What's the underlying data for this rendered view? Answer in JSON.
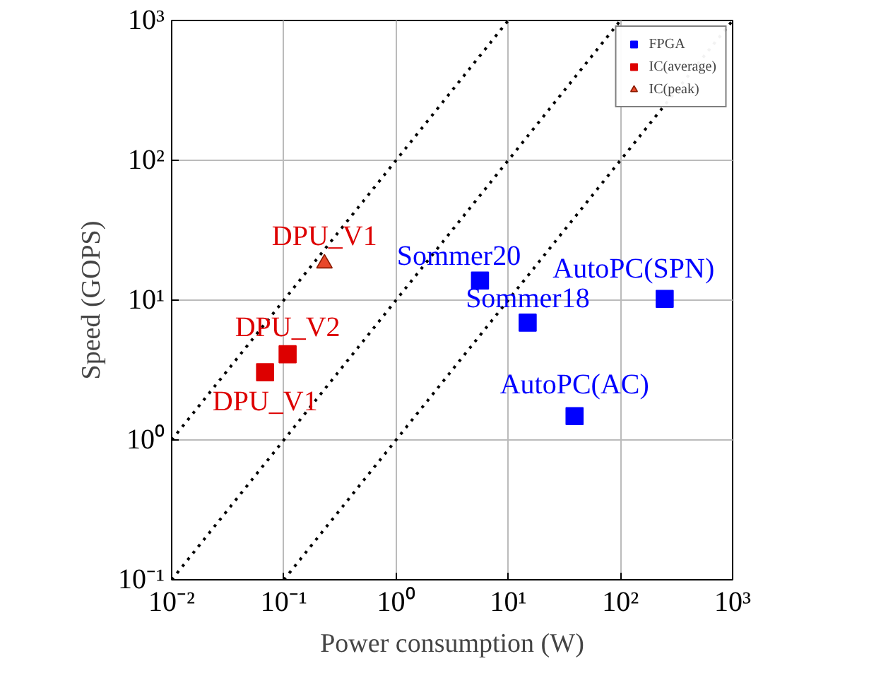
{
  "chart_data": {
    "type": "scatter",
    "xlabel": "Power consumption (W)",
    "ylabel": "Speed (GOPS)",
    "log": "xy",
    "grid": true,
    "legend": "top right",
    "xlim": [
      0.01,
      1000
    ],
    "ylim": [
      0.1,
      1000
    ],
    "xticks": [
      {
        "value": 0.01,
        "label": "10⁻²"
      },
      {
        "value": 0.1,
        "label": "10⁻¹"
      },
      {
        "value": 1,
        "label": "10⁰"
      },
      {
        "value": 10,
        "label": "10¹"
      },
      {
        "value": 100,
        "label": "10²"
      },
      {
        "value": 1000,
        "label": "10³"
      }
    ],
    "yticks": [
      {
        "value": 0.1,
        "label": "10⁻¹"
      },
      {
        "value": 1,
        "label": "10⁰"
      },
      {
        "value": 10,
        "label": "10¹"
      },
      {
        "value": 100,
        "label": "10²"
      },
      {
        "value": 1000,
        "label": "10³"
      }
    ],
    "series": [
      {
        "name": "FPGA",
        "marker": "square",
        "color": "#0000ff",
        "x": [
          5.6,
          14.9,
          248,
          39
        ],
        "values": [
          13.8,
          6.9,
          10.2,
          1.48
        ]
      },
      {
        "name": "IC(average)",
        "marker": "square",
        "color": "#dd0000",
        "x": [
          0.068,
          0.108
        ],
        "values": [
          3.05,
          4.1
        ]
      },
      {
        "name": "IC(peak)",
        "marker": "triangle",
        "color": "#e8482a",
        "x": [
          0.23
        ],
        "values": [
          18.3
        ]
      },
      {
        "type": "line",
        "line_style": "dotted",
        "color": "#000000",
        "x": [
          0.01,
          10
        ],
        "values": [
          1,
          1000
        ]
      },
      {
        "type": "line",
        "line_style": "dotted",
        "color": "#000000",
        "x": [
          0.01,
          100
        ],
        "values": [
          0.1,
          1000
        ]
      },
      {
        "type": "line",
        "line_style": "dotted",
        "color": "#000000",
        "x": [
          0.1,
          1000
        ],
        "values": [
          0.1,
          1000
        ]
      }
    ],
    "annotations": [
      {
        "text": "DPU_V1",
        "x": 0.23,
        "y": 18.3
      },
      {
        "text": "DPU_V2",
        "x": 0.108,
        "y": 4.1
      },
      {
        "text": "DPU_V1",
        "x": 0.068,
        "y": 3.05
      },
      {
        "text": "Sommer20",
        "x": 5.6,
        "y": 13.8
      },
      {
        "text": "Sommer18",
        "x": 14.9,
        "y": 6.9
      },
      {
        "text": "AutoPC(SPN)",
        "x": 248,
        "y": 10.2
      },
      {
        "text": "AutoPC(AC)",
        "x": 39,
        "y": 1.48
      }
    ]
  }
}
